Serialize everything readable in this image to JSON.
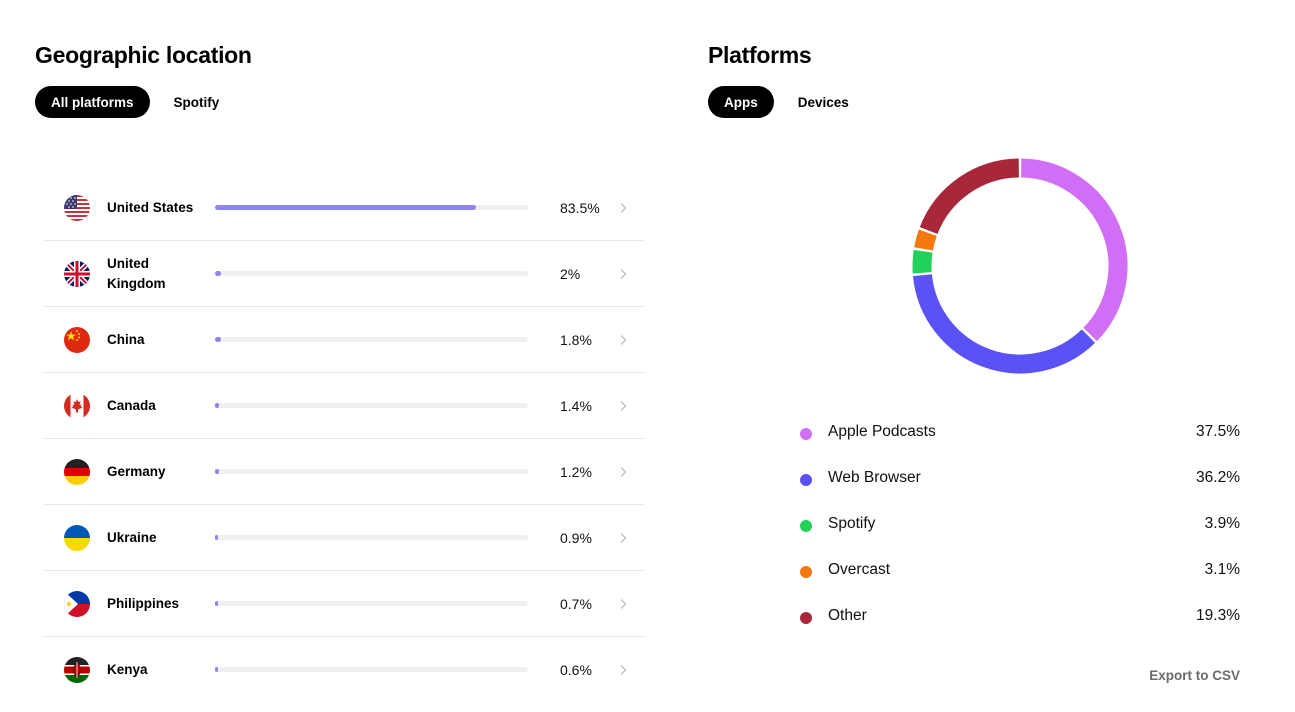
{
  "geo": {
    "title": "Geographic location",
    "tabs": [
      {
        "label": "All platforms",
        "active": true
      },
      {
        "label": "Spotify",
        "active": false
      }
    ],
    "rows": [
      {
        "country": "United States",
        "percent": "83.5%",
        "fraction": 0.835,
        "flag": "flag-us"
      },
      {
        "country": "United Kingdom",
        "percent": "2%",
        "fraction": 0.02,
        "flag": "flag-uk"
      },
      {
        "country": "China",
        "percent": "1.8%",
        "fraction": 0.018,
        "flag": "flag-cn"
      },
      {
        "country": "Canada",
        "percent": "1.4%",
        "fraction": 0.014,
        "flag": "flag-ca"
      },
      {
        "country": "Germany",
        "percent": "1.2%",
        "fraction": 0.012,
        "flag": "flag-de"
      },
      {
        "country": "Ukraine",
        "percent": "0.9%",
        "fraction": 0.009,
        "flag": "flag-ua"
      },
      {
        "country": "Philippines",
        "percent": "0.7%",
        "fraction": 0.007,
        "flag": "flag-ph"
      },
      {
        "country": "Kenya",
        "percent": "0.6%",
        "fraction": 0.006,
        "flag": "flag-ke"
      }
    ],
    "bar_color": "#8e86f0"
  },
  "platforms": {
    "title": "Platforms",
    "tabs": [
      {
        "label": "Apps",
        "active": true
      },
      {
        "label": "Devices",
        "active": false
      }
    ],
    "export_label": "Export to CSV"
  },
  "chart_data": {
    "type": "pie",
    "categories": [
      "Apple Podcasts",
      "Web Browser",
      "Spotify",
      "Overcast",
      "Other"
    ],
    "values": [
      37.5,
      36.2,
      3.9,
      3.1,
      19.3
    ],
    "labels": [
      "37.5%",
      "36.2%",
      "3.9%",
      "3.1%",
      "19.3%"
    ],
    "colors": [
      "#d06ff5",
      "#5b52f6",
      "#22d15a",
      "#f4780e",
      "#a8283a"
    ],
    "donut": true
  }
}
